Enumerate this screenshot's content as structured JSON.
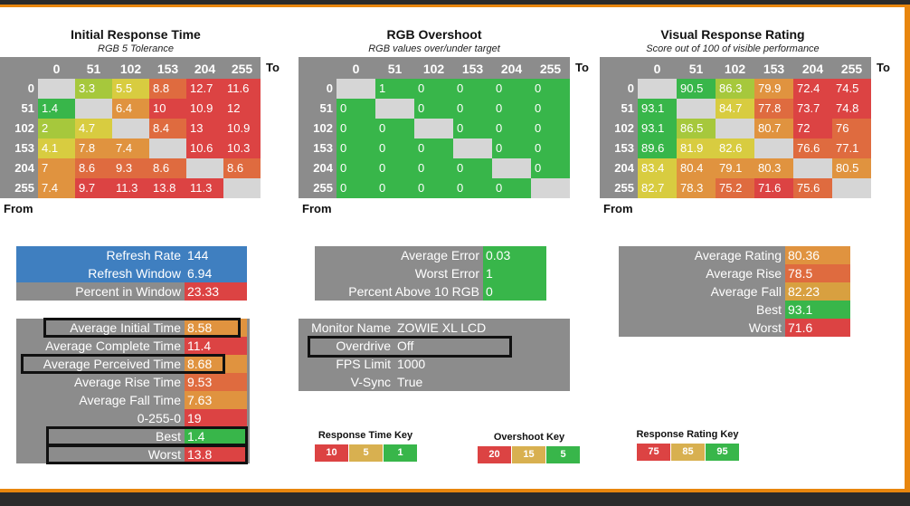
{
  "chart_data": [
    {
      "type": "heatmap",
      "title": "Initial Response Time",
      "subtitle": "RGB 5 Tolerance",
      "x_label": "To",
      "y_label": "From",
      "columns": [
        "0",
        "51",
        "102",
        "153",
        "204",
        "255"
      ],
      "rows": [
        "0",
        "51",
        "102",
        "153",
        "204",
        "255"
      ],
      "values": [
        [
          "",
          "3.3",
          "5.5",
          "8.8",
          "12.7",
          "11.6"
        ],
        [
          "1.4",
          "",
          "6.4",
          "10",
          "10.9",
          "12"
        ],
        [
          "2",
          "4.7",
          "",
          "8.4",
          "13",
          "10.9"
        ],
        [
          "4.1",
          "7.8",
          "7.4",
          "",
          "10.6",
          "10.3"
        ],
        [
          "7",
          "8.6",
          "9.3",
          "8.6",
          "",
          "8.6"
        ],
        [
          "7.4",
          "9.7",
          "11.3",
          "13.8",
          "11.3",
          ""
        ]
      ]
    },
    {
      "type": "heatmap",
      "title": "RGB Overshoot",
      "subtitle": "RGB values over/under target",
      "x_label": "To",
      "y_label": "From",
      "columns": [
        "0",
        "51",
        "102",
        "153",
        "204",
        "255"
      ],
      "rows": [
        "0",
        "51",
        "102",
        "153",
        "204",
        "255"
      ],
      "values": [
        [
          "",
          "1",
          "0",
          "0",
          "0",
          "0"
        ],
        [
          "0",
          "",
          "0",
          "0",
          "0",
          "0"
        ],
        [
          "0",
          "0",
          "",
          "0",
          "0",
          "0"
        ],
        [
          "0",
          "0",
          "0",
          "",
          "0",
          "0"
        ],
        [
          "0",
          "0",
          "0",
          "0",
          "",
          "0"
        ],
        [
          "0",
          "0",
          "0",
          "0",
          "0",
          ""
        ]
      ]
    },
    {
      "type": "heatmap",
      "title": "Visual Response Rating",
      "subtitle": "Score out of 100 of visible performance",
      "x_label": "To",
      "y_label": "From",
      "columns": [
        "0",
        "51",
        "102",
        "153",
        "204",
        "255"
      ],
      "rows": [
        "0",
        "51",
        "102",
        "153",
        "204",
        "255"
      ],
      "values": [
        [
          "",
          "90.5",
          "86.3",
          "79.9",
          "72.4",
          "74.5"
        ],
        [
          "93.1",
          "",
          "84.7",
          "77.8",
          "73.7",
          "74.8"
        ],
        [
          "93.1",
          "86.5",
          "",
          "80.7",
          "72",
          "76"
        ],
        [
          "89.6",
          "81.9",
          "82.6",
          "",
          "76.6",
          "77.1"
        ],
        [
          "83.4",
          "80.4",
          "79.1",
          "80.3",
          "",
          "80.5"
        ],
        [
          "82.7",
          "78.3",
          "75.2",
          "71.6",
          "75.6",
          ""
        ]
      ]
    }
  ],
  "colors": {
    "green": "#38b64a",
    "yellowgreen": "#a6c83c",
    "yellow": "#d8cc40",
    "orange": "#e0933f",
    "orangered": "#df6b3f",
    "red": "#dc4343",
    "blue": "#3f7fc0",
    "gray": "#8c8c8c",
    "diag": "#d6d6d6"
  },
  "refresh": {
    "rows": [
      {
        "label": "Refresh Rate",
        "value": "144",
        "color": "#3f7fc0"
      },
      {
        "label": "Refresh Window",
        "value": "6.94",
        "color": "#3f7fc0"
      },
      {
        "label": "Percent in Window",
        "value": "23.33",
        "color": "#dc4343"
      }
    ]
  },
  "times": {
    "rows": [
      {
        "label": "Average Initial Time",
        "value": "8.58",
        "color": "#e0933f"
      },
      {
        "label": "Average Complete Time",
        "value": "11.4",
        "color": "#dc4343"
      },
      {
        "label": "Average Perceived Time",
        "value": "8.68",
        "color": "#e0933f"
      },
      {
        "label": "Average Rise Time",
        "value": "9.53",
        "color": "#df6b3f"
      },
      {
        "label": "Average Fall Time",
        "value": "7.63",
        "color": "#e0933f"
      },
      {
        "label": "0-255-0",
        "value": "19",
        "color": "#dc4343"
      },
      {
        "label": "Best",
        "value": "1.4",
        "color": "#38b64a"
      },
      {
        "label": "Worst",
        "value": "13.8",
        "color": "#dc4343"
      }
    ]
  },
  "overshoot_stats": {
    "rows": [
      {
        "label": "Average Error",
        "value": "0.03",
        "color": "#38b64a"
      },
      {
        "label": "Worst Error",
        "value": "1",
        "color": "#38b64a"
      },
      {
        "label": "Percent Above 10 RGB",
        "value": "0",
        "color": "#38b64a"
      }
    ]
  },
  "monitor": {
    "rows": [
      {
        "label": "Monitor Name",
        "value": "ZOWIE XL LCD"
      },
      {
        "label": "Overdrive",
        "value": "Off"
      },
      {
        "label": "FPS Limit",
        "value": "1000"
      },
      {
        "label": "V-Sync",
        "value": "True"
      }
    ]
  },
  "rating_stats": {
    "rows": [
      {
        "label": "Average Rating",
        "value": "80.36",
        "color": "#e0933f"
      },
      {
        "label": "Average Rise",
        "value": "78.5",
        "color": "#df6b3f"
      },
      {
        "label": "Average Fall",
        "value": "82.23",
        "color": "#d8a040"
      },
      {
        "label": "Best",
        "value": "93.1",
        "color": "#38b64a"
      },
      {
        "label": "Worst",
        "value": "71.6",
        "color": "#dc4343"
      }
    ]
  },
  "keys": [
    {
      "title": "Response Time Key",
      "cells": [
        {
          "label": "10",
          "color": "#dc4343"
        },
        {
          "label": "5",
          "color": "#d8b050"
        },
        {
          "label": "1",
          "color": "#38b64a"
        }
      ]
    },
    {
      "title": "Overshoot Key",
      "cells": [
        {
          "label": "20",
          "color": "#dc4343"
        },
        {
          "label": "15",
          "color": "#d8b050"
        },
        {
          "label": "5",
          "color": "#38b64a"
        }
      ]
    },
    {
      "title": "Response Rating Key",
      "cells": [
        {
          "label": "75",
          "color": "#dc4343"
        },
        {
          "label": "85",
          "color": "#d8b050"
        },
        {
          "label": "95",
          "color": "#38b64a"
        }
      ]
    }
  ]
}
